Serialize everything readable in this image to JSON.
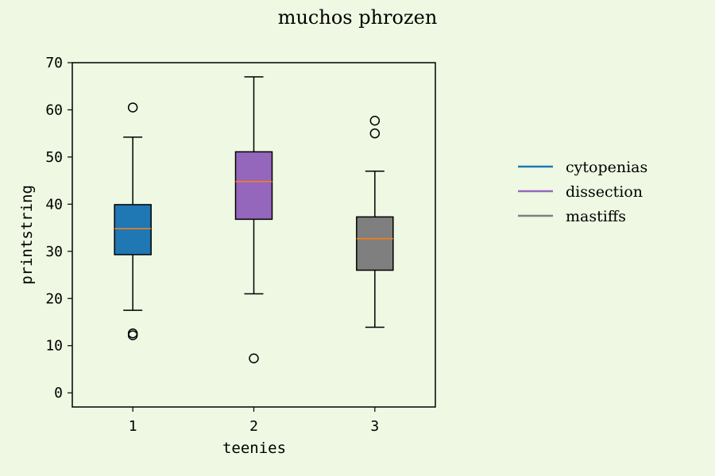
{
  "chart_data": {
    "type": "box",
    "title": "muchos phrozen",
    "xlabel": "teenies",
    "ylabel": "printstring",
    "categories": [
      "1",
      "2",
      "3"
    ],
    "ylim": [
      -3,
      70
    ],
    "yticks": [
      0,
      10,
      20,
      30,
      40,
      50,
      60,
      70
    ],
    "grid": false,
    "legend_position": "right",
    "series": [
      {
        "name": "cytopenias",
        "color": "#1f77b4",
        "whisker_low": 17.5,
        "q1": 29.3,
        "median": 34.8,
        "q3": 39.9,
        "whisker_high": 54.2,
        "outliers": [
          60.5,
          12.6,
          12.2
        ]
      },
      {
        "name": "dissection",
        "color": "#9467bd",
        "whisker_low": 21.0,
        "q1": 36.8,
        "median": 44.8,
        "q3": 51.1,
        "whisker_high": 67.0,
        "outliers": [
          7.3
        ]
      },
      {
        "name": "mastiffs",
        "color": "#7f7f7f",
        "whisker_low": 13.9,
        "q1": 26.0,
        "median": 32.7,
        "q3": 37.3,
        "whisker_high": 47.0,
        "outliers": [
          57.7,
          55.0
        ]
      }
    ],
    "median_color": "#ff7f0e"
  }
}
